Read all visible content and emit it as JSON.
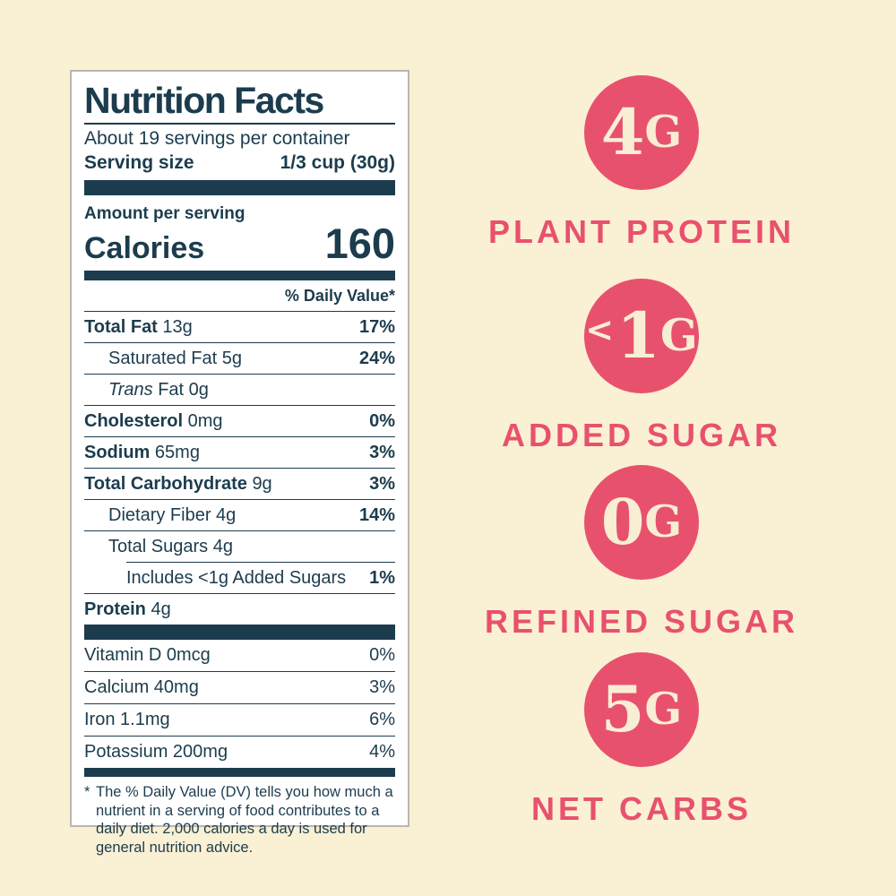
{
  "colors": {
    "background": "#faf0d3",
    "navy": "#1c3c4e",
    "pink": "#e8516e",
    "label_bg": "#ffffff",
    "label_border": "#b9b7b1",
    "circle_text": "#f8eed4"
  },
  "label": {
    "title": "Nutrition Facts",
    "servings_line": "About 19 servings per container",
    "serving_size_label": "Serving size",
    "serving_size_value": "1/3 cup (30g)",
    "amount_per_serving": "Amount per serving",
    "calories_label": "Calories",
    "calories_value": "160",
    "daily_value_header": "% Daily Value*",
    "nutrient_rows": [
      {
        "name_bold": "Total Fat",
        "name_rest": "13g",
        "pct": "17%",
        "indent": 0,
        "pct_bold": true,
        "separator": "full"
      },
      {
        "name_rest": "Saturated Fat 5g",
        "pct": "24%",
        "indent": 1,
        "pct_bold": true,
        "separator": "full"
      },
      {
        "name_italic": "Trans",
        "name_rest": "Fat 0g",
        "pct": "",
        "indent": 1,
        "separator": "full"
      },
      {
        "name_bold": "Cholesterol",
        "name_rest": "0mg",
        "pct": "0%",
        "indent": 0,
        "pct_bold": true,
        "separator": "full"
      },
      {
        "name_bold": "Sodium",
        "name_rest": "65mg",
        "pct": "3%",
        "indent": 0,
        "pct_bold": true,
        "separator": "full"
      },
      {
        "name_bold": "Total Carbohydrate",
        "name_rest": "9g",
        "pct": "3%",
        "indent": 0,
        "pct_bold": true,
        "separator": "full"
      },
      {
        "name_rest": "Dietary Fiber 4g",
        "pct": "14%",
        "indent": 1,
        "pct_bold": true,
        "separator": "full"
      },
      {
        "name_rest": "Total Sugars 4g",
        "pct": "",
        "indent": 1,
        "separator": "full"
      },
      {
        "name_rest": "Includes <1g Added Sugars",
        "pct": "1%",
        "indent": 2,
        "pct_bold": true,
        "separator": "partial"
      },
      {
        "name_bold": "Protein",
        "name_rest": "4g",
        "pct": "",
        "indent": 0,
        "separator": "full"
      }
    ],
    "vitamin_rows": [
      {
        "name": "Vitamin D 0mcg",
        "pct": "0%"
      },
      {
        "name": "Calcium 40mg",
        "pct": "3%"
      },
      {
        "name": "Iron 1.1mg",
        "pct": "6%"
      },
      {
        "name": "Potassium 200mg",
        "pct": "4%"
      }
    ],
    "footnote_asterisk": "*",
    "footnote": "The % Daily Value (DV) tells you how much a nutrient in a serving of food contributes to a daily diet. 2,000 calories a day is used for general nutrition advice."
  },
  "badges": [
    {
      "prefix": "",
      "value": "4",
      "unit": "G",
      "label": "PLANT PROTEIN"
    },
    {
      "prefix": "<",
      "value": "1",
      "unit": "G",
      "label": "ADDED SUGAR"
    },
    {
      "prefix": "",
      "value": "0",
      "unit": "G",
      "label": "REFINED SUGAR"
    },
    {
      "prefix": "",
      "value": "5",
      "unit": "G",
      "label": "NET CARBS"
    }
  ]
}
